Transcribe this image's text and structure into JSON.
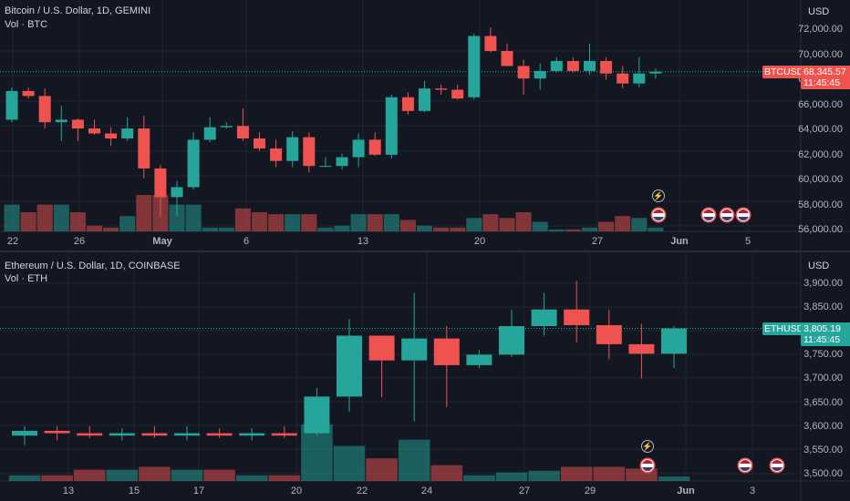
{
  "colors": {
    "up": "#26a69a",
    "down": "#ef5350",
    "grid": "#1f2430",
    "bg": "#131722"
  },
  "top": {
    "title": "Bitcoin / U.S. Dollar, 1D, GEMINI",
    "vol_label": "Vol · BTC",
    "currency": "USD",
    "symbol_tag": "BTCUSD",
    "last_price": "68,345.57",
    "countdown": "11:45:45",
    "price_ticks": [
      "72,000.00",
      "70,000.00",
      "68,000.00",
      "66,000.00",
      "64,000.00",
      "62,000.00",
      "60,000.00",
      "58,000.00",
      "56,000.00"
    ],
    "time_ticks": [
      "22",
      "26",
      "May",
      "6",
      "13",
      "20",
      "27",
      "Jun",
      "5"
    ]
  },
  "bottom": {
    "title": "Ethereum / U.S. Dollar, 1D, COINBASE",
    "vol_label": "Vol · ETH",
    "currency": "USD",
    "symbol_tag": "ETHUSD",
    "last_price": "3,805.19",
    "countdown": "11:45:45",
    "price_ticks": [
      "3,900.00",
      "3,850.00",
      "3,800.00",
      "3,750.00",
      "3,700.00",
      "3,650.00",
      "3,600.00",
      "3,550.00",
      "3,500.00"
    ],
    "time_ticks": [
      "13",
      "15",
      "17",
      "20",
      "22",
      "24",
      "27",
      "29",
      "Jun",
      "3"
    ]
  },
  "chart_data": [
    {
      "type": "candlestick",
      "title": "Bitcoin / U.S. Dollar, 1D, GEMINI",
      "ylim": [
        55000,
        72800
      ],
      "candles": [
        {
          "o": 64500,
          "h": 67100,
          "l": 64300,
          "c": 66800,
          "v": 0.7
        },
        {
          "o": 66800,
          "h": 67100,
          "l": 66200,
          "c": 66400,
          "v": 0.5
        },
        {
          "o": 66400,
          "h": 67000,
          "l": 63800,
          "c": 64300,
          "v": 0.7
        },
        {
          "o": 64300,
          "h": 65600,
          "l": 62800,
          "c": 64500,
          "v": 0.7
        },
        {
          "o": 64500,
          "h": 64600,
          "l": 62800,
          "c": 63800,
          "v": 0.5
        },
        {
          "o": 63800,
          "h": 64500,
          "l": 63300,
          "c": 63400,
          "v": 0.15
        },
        {
          "o": 63400,
          "h": 63900,
          "l": 62400,
          "c": 63000,
          "v": 0.1
        },
        {
          "o": 63000,
          "h": 64700,
          "l": 62800,
          "c": 63800,
          "v": 0.4
        },
        {
          "o": 63800,
          "h": 64800,
          "l": 59800,
          "c": 60600,
          "v": 0.95
        },
        {
          "o": 60600,
          "h": 60900,
          "l": 56700,
          "c": 58300,
          "v": 0.95
        },
        {
          "o": 58300,
          "h": 59600,
          "l": 56800,
          "c": 59100,
          "v": 0.7
        },
        {
          "o": 59100,
          "h": 63500,
          "l": 58900,
          "c": 62900,
          "v": 0.7
        },
        {
          "o": 62900,
          "h": 64700,
          "l": 62700,
          "c": 63900,
          "v": 0.1
        },
        {
          "o": 63900,
          "h": 64300,
          "l": 63800,
          "c": 64000,
          "v": 0.1
        },
        {
          "o": 64000,
          "h": 65400,
          "l": 62800,
          "c": 63000,
          "v": 0.6
        },
        {
          "o": 63000,
          "h": 63500,
          "l": 62000,
          "c": 62200,
          "v": 0.5
        },
        {
          "o": 62200,
          "h": 62900,
          "l": 60700,
          "c": 61200,
          "v": 0.45
        },
        {
          "o": 61200,
          "h": 63600,
          "l": 60700,
          "c": 63100,
          "v": 0.45
        },
        {
          "o": 63100,
          "h": 63500,
          "l": 60300,
          "c": 60800,
          "v": 0.45
        },
        {
          "o": 60800,
          "h": 61500,
          "l": 60700,
          "c": 60800,
          "v": 0.1
        },
        {
          "o": 60800,
          "h": 61800,
          "l": 60500,
          "c": 61500,
          "v": 0.15
        },
        {
          "o": 61500,
          "h": 63400,
          "l": 60700,
          "c": 62900,
          "v": 0.45
        },
        {
          "o": 62900,
          "h": 63500,
          "l": 61600,
          "c": 61700,
          "v": 0.45
        },
        {
          "o": 61700,
          "h": 66500,
          "l": 61400,
          "c": 66300,
          "v": 0.45
        },
        {
          "o": 66300,
          "h": 66700,
          "l": 64900,
          "c": 65200,
          "v": 0.3
        },
        {
          "o": 65200,
          "h": 67600,
          "l": 65100,
          "c": 67000,
          "v": 0.15
        },
        {
          "o": 67000,
          "h": 67300,
          "l": 66500,
          "c": 66900,
          "v": 0.1
        },
        {
          "o": 66900,
          "h": 67300,
          "l": 66100,
          "c": 66200,
          "v": 0.1
        },
        {
          "o": 66300,
          "h": 71400,
          "l": 66100,
          "c": 71200,
          "v": 0.35
        },
        {
          "o": 71200,
          "h": 71900,
          "l": 69900,
          "c": 70000,
          "v": 0.45
        },
        {
          "o": 70000,
          "h": 70600,
          "l": 68800,
          "c": 68800,
          "v": 0.35
        },
        {
          "o": 68800,
          "h": 69300,
          "l": 66500,
          "c": 67800,
          "v": 0.5
        },
        {
          "o": 67800,
          "h": 69000,
          "l": 66900,
          "c": 68400,
          "v": 0.25
        },
        {
          "o": 68400,
          "h": 69500,
          "l": 68300,
          "c": 69200,
          "v": 0.05
        },
        {
          "o": 69200,
          "h": 69500,
          "l": 68300,
          "c": 68400,
          "v": 0.05
        },
        {
          "o": 68400,
          "h": 70600,
          "l": 68100,
          "c": 69200,
          "v": 0.1
        },
        {
          "o": 69200,
          "h": 69500,
          "l": 67700,
          "c": 68200,
          "v": 0.25
        },
        {
          "o": 68200,
          "h": 68800,
          "l": 67000,
          "c": 67400,
          "v": 0.4
        },
        {
          "o": 67400,
          "h": 69500,
          "l": 67100,
          "c": 68200,
          "v": 0.35
        },
        {
          "o": 68200,
          "h": 68600,
          "l": 67800,
          "c": 68345.57,
          "v": 0.1
        }
      ],
      "events": [
        "lightning",
        "flag",
        "flag",
        "flag",
        "flag"
      ]
    },
    {
      "type": "candlestick",
      "title": "Ethereum / U.S. Dollar, 1D, COINBASE",
      "ylim": [
        3480,
        3935
      ],
      "candles": [
        {
          "o": 3580,
          "h": 3600,
          "l": 3560,
          "c": 3590,
          "v": 0.1
        },
        {
          "o": 3590,
          "h": 3600,
          "l": 3570,
          "c": 3585,
          "v": 0.1
        },
        {
          "o": 3585,
          "h": 3600,
          "l": 3575,
          "c": 3580,
          "v": 0.2
        },
        {
          "o": 3580,
          "h": 3595,
          "l": 3570,
          "c": 3585,
          "v": 0.2
        },
        {
          "o": 3585,
          "h": 3600,
          "l": 3575,
          "c": 3580,
          "v": 0.25
        },
        {
          "o": 3580,
          "h": 3600,
          "l": 3570,
          "c": 3585,
          "v": 0.2
        },
        {
          "o": 3585,
          "h": 3595,
          "l": 3575,
          "c": 3580,
          "v": 0.2
        },
        {
          "o": 3580,
          "h": 3595,
          "l": 3570,
          "c": 3585,
          "v": 0.1
        },
        {
          "o": 3585,
          "h": 3600,
          "l": 3575,
          "c": 3580,
          "v": 0.1
        },
        {
          "o": 3585,
          "h": 3680,
          "l": 3580,
          "c": 3662,
          "v": 1.0
        },
        {
          "o": 3662,
          "h": 3825,
          "l": 3630,
          "c": 3790,
          "v": 0.62
        },
        {
          "o": 3790,
          "h": 3790,
          "l": 3660,
          "c": 3738,
          "v": 0.4
        },
        {
          "o": 3738,
          "h": 3880,
          "l": 3610,
          "c": 3784,
          "v": 0.73
        },
        {
          "o": 3784,
          "h": 3810,
          "l": 3640,
          "c": 3728,
          "v": 0.28
        },
        {
          "o": 3728,
          "h": 3760,
          "l": 3722,
          "c": 3750,
          "v": 0.1
        },
        {
          "o": 3750,
          "h": 3845,
          "l": 3745,
          "c": 3810,
          "v": 0.15
        },
        {
          "o": 3810,
          "h": 3880,
          "l": 3790,
          "c": 3845,
          "v": 0.18
        },
        {
          "o": 3845,
          "h": 3905,
          "l": 3775,
          "c": 3812,
          "v": 0.25
        },
        {
          "o": 3812,
          "h": 3845,
          "l": 3740,
          "c": 3772,
          "v": 0.25
        },
        {
          "o": 3772,
          "h": 3815,
          "l": 3700,
          "c": 3752,
          "v": 0.22
        },
        {
          "o": 3752,
          "h": 3810,
          "l": 3722,
          "c": 3805.19,
          "v": 0.08
        }
      ],
      "events": [
        "lightning",
        "flag",
        "flag",
        "flag"
      ]
    }
  ]
}
